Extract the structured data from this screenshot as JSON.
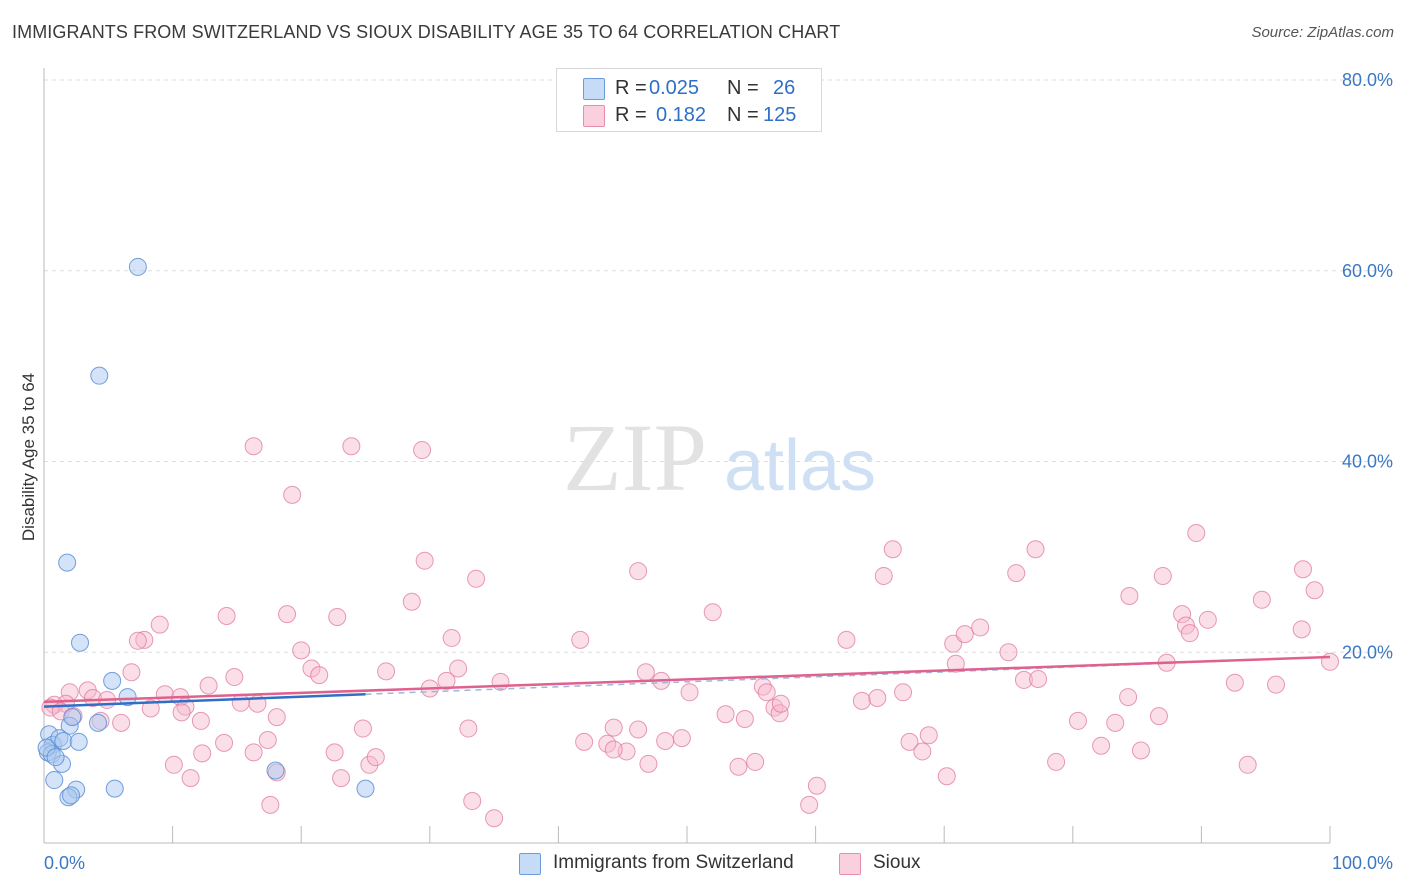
{
  "title": "IMMIGRANTS FROM SWITZERLAND VS SIOUX DISABILITY AGE 35 TO 64 CORRELATION CHART",
  "source": "Source: ZipAtlas.com",
  "watermark": {
    "zip": "ZIP",
    "atlas": "atlas"
  },
  "legend": {
    "rows": [
      {
        "r_label": "R =",
        "r_value": "0.025",
        "n_label": "N =",
        "n_value": "26"
      },
      {
        "r_label": "R =",
        "r_value": "0.182",
        "n_label": "N =",
        "n_value": "125"
      }
    ]
  },
  "bottom_legend": {
    "series1": "Immigrants from Switzerland",
    "series2": "Sioux"
  },
  "colors": {
    "blue_fill": "#aac8f0",
    "blue_stroke": "#5b8fd6",
    "blue_line": "#2f6fc6",
    "pink_fill": "#f6b8cc",
    "pink_stroke": "#e0789c",
    "pink_line": "#e0608e",
    "axis_text": "#3b78c4",
    "grid": "#dddddd"
  },
  "chart_data": {
    "type": "scatter",
    "title": "IMMIGRANTS FROM SWITZERLAND VS SIOUX DISABILITY AGE 35 TO 64 CORRELATION CHART",
    "xlabel": "",
    "ylabel": "Disability Age 35 to 64",
    "xlim": [
      0,
      100
    ],
    "ylim": [
      0,
      80
    ],
    "x_tick_labels": [
      "0.0%",
      "100.0%"
    ],
    "y_ticks": [
      20,
      40,
      60,
      80
    ],
    "y_tick_labels": [
      "20.0%",
      "40.0%",
      "60.0%",
      "80.0%"
    ],
    "grid": true,
    "legend_position": "top-center",
    "series": [
      {
        "name": "Immigrants from Switzerland",
        "R": 0.025,
        "N": 26,
        "trend": {
          "x0": 0,
          "y0": 14.3,
          "x1": 25,
          "y1": 15.6,
          "dashed_to_x": 100,
          "dashed_to_y": 19.5
        },
        "points": [
          [
            7.3,
            60.4
          ],
          [
            4.3,
            49.0
          ],
          [
            1.8,
            29.4
          ],
          [
            2.8,
            21.0
          ],
          [
            5.3,
            17.0
          ],
          [
            6.5,
            15.3
          ],
          [
            4.2,
            12.6
          ],
          [
            2.0,
            12.3
          ],
          [
            2.2,
            13.2
          ],
          [
            0.4,
            11.4
          ],
          [
            0.7,
            10.3
          ],
          [
            1.2,
            11.0
          ],
          [
            1.5,
            10.7
          ],
          [
            2.7,
            10.6
          ],
          [
            0.3,
            9.5
          ],
          [
            0.6,
            9.3
          ],
          [
            1.4,
            8.3
          ],
          [
            0.8,
            6.6
          ],
          [
            18.0,
            7.6
          ],
          [
            2.5,
            5.6
          ],
          [
            5.5,
            5.7
          ],
          [
            1.9,
            4.8
          ],
          [
            2.1,
            5.0
          ],
          [
            25.0,
            5.7
          ],
          [
            0.2,
            10.0
          ],
          [
            0.9,
            9.0
          ]
        ]
      },
      {
        "name": "Sioux",
        "R": 0.182,
        "N": 125,
        "trend": {
          "x0": 0,
          "y0": 14.8,
          "x1": 100,
          "y1": 19.5
        },
        "points": [
          [
            16.3,
            41.6
          ],
          [
            23.9,
            41.6
          ],
          [
            29.4,
            41.2
          ],
          [
            19.3,
            36.5
          ],
          [
            29.6,
            29.6
          ],
          [
            33.6,
            27.7
          ],
          [
            28.6,
            25.3
          ],
          [
            18.9,
            24.0
          ],
          [
            14.2,
            23.8
          ],
          [
            22.8,
            23.7
          ],
          [
            9.0,
            22.9
          ],
          [
            7.8,
            21.3
          ],
          [
            7.3,
            21.2
          ],
          [
            31.7,
            21.5
          ],
          [
            20.0,
            20.2
          ],
          [
            20.8,
            18.3
          ],
          [
            21.4,
            17.6
          ],
          [
            6.8,
            17.9
          ],
          [
            26.6,
            18.0
          ],
          [
            14.8,
            17.4
          ],
          [
            32.2,
            18.3
          ],
          [
            31.3,
            17.0
          ],
          [
            35.5,
            16.9
          ],
          [
            30.0,
            16.2
          ],
          [
            12.8,
            16.5
          ],
          [
            3.4,
            16.0
          ],
          [
            2.0,
            15.8
          ],
          [
            9.4,
            15.6
          ],
          [
            10.6,
            15.3
          ],
          [
            11.0,
            14.3
          ],
          [
            3.8,
            15.2
          ],
          [
            4.9,
            15.0
          ],
          [
            1.7,
            14.6
          ],
          [
            0.8,
            14.5
          ],
          [
            0.5,
            14.2
          ],
          [
            1.3,
            13.8
          ],
          [
            2.3,
            13.3
          ],
          [
            4.4,
            12.8
          ],
          [
            6.0,
            12.6
          ],
          [
            8.3,
            14.1
          ],
          [
            10.7,
            13.7
          ],
          [
            12.2,
            12.8
          ],
          [
            15.3,
            14.7
          ],
          [
            16.6,
            14.6
          ],
          [
            18.1,
            13.2
          ],
          [
            14.0,
            10.5
          ],
          [
            17.4,
            10.8
          ],
          [
            12.3,
            9.4
          ],
          [
            16.3,
            9.5
          ],
          [
            10.1,
            8.2
          ],
          [
            11.4,
            6.8
          ],
          [
            18.1,
            7.4
          ],
          [
            22.6,
            9.5
          ],
          [
            25.3,
            8.2
          ],
          [
            23.1,
            6.8
          ],
          [
            25.8,
            9.0
          ],
          [
            24.8,
            12.0
          ],
          [
            17.6,
            4.0
          ],
          [
            33.0,
            12.0
          ],
          [
            33.3,
            4.4
          ],
          [
            35.0,
            2.6
          ],
          [
            42.0,
            10.6
          ],
          [
            43.8,
            10.4
          ],
          [
            45.3,
            9.6
          ],
          [
            44.3,
            9.8
          ],
          [
            44.3,
            12.1
          ],
          [
            46.2,
            11.9
          ],
          [
            47.0,
            8.3
          ],
          [
            41.7,
            21.3
          ],
          [
            46.2,
            28.5
          ],
          [
            46.8,
            17.9
          ],
          [
            48.3,
            10.7
          ],
          [
            48.0,
            17.0
          ],
          [
            49.6,
            11.0
          ],
          [
            50.2,
            15.8
          ],
          [
            52.0,
            24.2
          ],
          [
            53.0,
            13.5
          ],
          [
            55.9,
            16.4
          ],
          [
            54.5,
            13.0
          ],
          [
            54.0,
            8.0
          ],
          [
            55.3,
            8.5
          ],
          [
            56.2,
            15.8
          ],
          [
            56.8,
            14.2
          ],
          [
            57.2,
            13.6
          ],
          [
            57.3,
            14.6
          ],
          [
            59.5,
            4.0
          ],
          [
            60.1,
            6.0
          ],
          [
            62.4,
            21.3
          ],
          [
            63.6,
            14.9
          ],
          [
            64.8,
            15.2
          ],
          [
            65.3,
            28.0
          ],
          [
            66.0,
            30.8
          ],
          [
            66.8,
            15.8
          ],
          [
            67.3,
            10.6
          ],
          [
            68.3,
            9.6
          ],
          [
            68.8,
            11.3
          ],
          [
            70.2,
            7.0
          ],
          [
            70.9,
            18.8
          ],
          [
            70.7,
            20.9
          ],
          [
            71.6,
            21.9
          ],
          [
            72.8,
            22.6
          ],
          [
            75.6,
            28.3
          ],
          [
            75.0,
            20.0
          ],
          [
            76.2,
            17.1
          ],
          [
            77.1,
            30.8
          ],
          [
            77.3,
            17.2
          ],
          [
            78.7,
            8.5
          ],
          [
            80.4,
            12.8
          ],
          [
            82.2,
            10.2
          ],
          [
            83.3,
            12.6
          ],
          [
            84.3,
            15.3
          ],
          [
            84.4,
            25.9
          ],
          [
            85.3,
            9.7
          ],
          [
            86.7,
            13.3
          ],
          [
            87.0,
            28.0
          ],
          [
            87.3,
            18.9
          ],
          [
            88.5,
            24.0
          ],
          [
            88.8,
            22.8
          ],
          [
            89.1,
            22.0
          ],
          [
            89.6,
            32.5
          ],
          [
            90.5,
            23.4
          ],
          [
            92.6,
            16.8
          ],
          [
            93.6,
            8.2
          ],
          [
            94.7,
            25.5
          ],
          [
            95.8,
            16.6
          ],
          [
            97.8,
            22.4
          ],
          [
            97.9,
            28.7
          ],
          [
            98.8,
            26.5
          ],
          [
            100.0,
            19.0
          ]
        ]
      }
    ]
  }
}
